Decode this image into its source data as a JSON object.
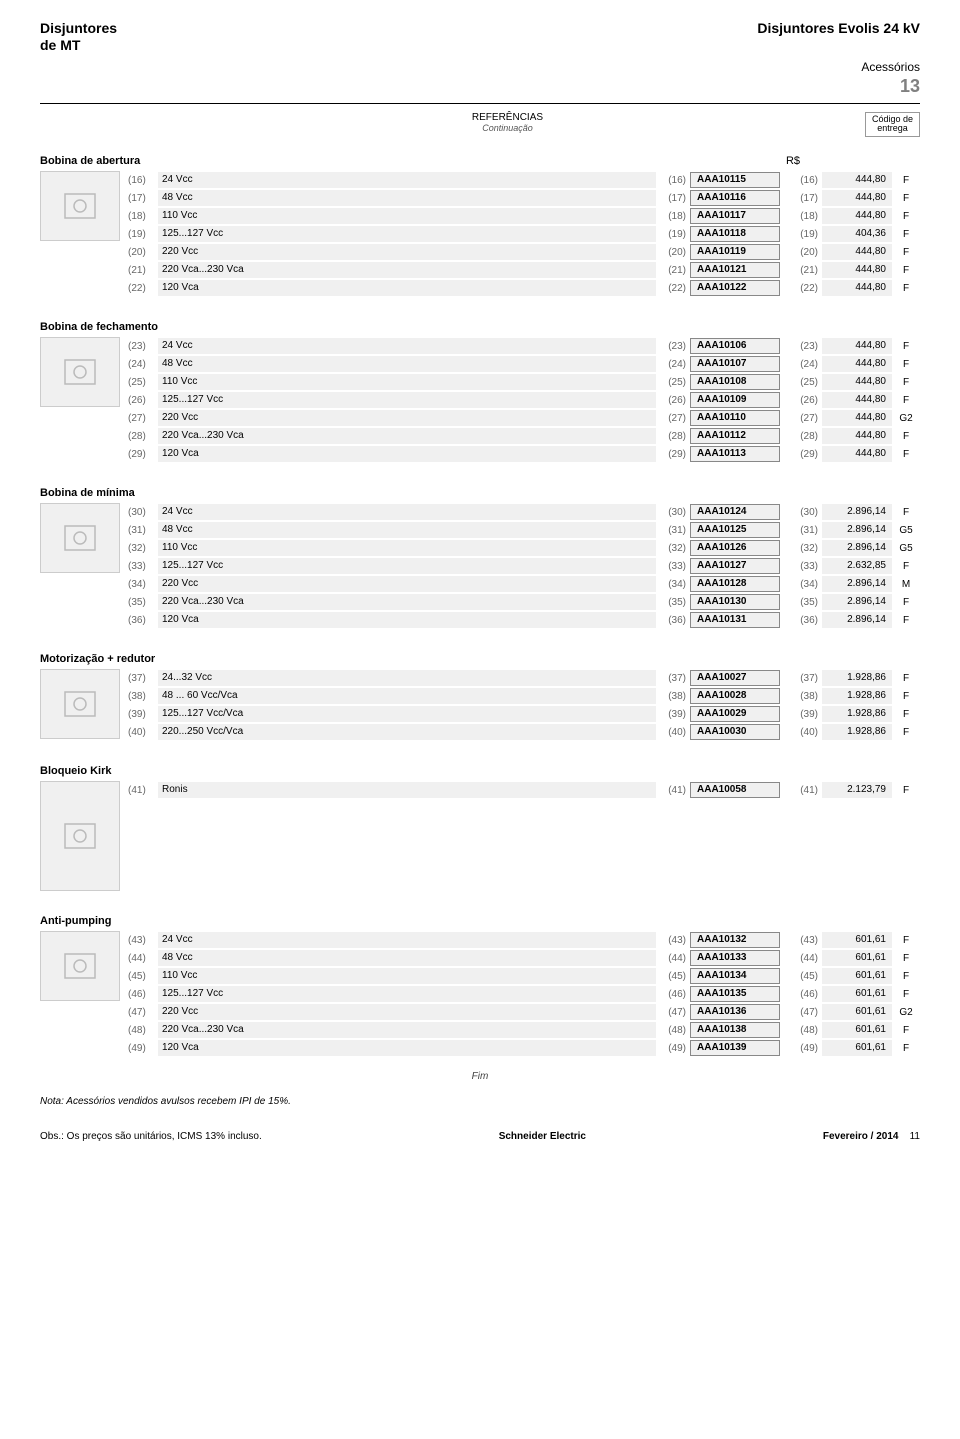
{
  "header": {
    "left_line1": "Disjuntores",
    "left_line2": "de MT",
    "right": "Disjuntores Evolis 24 kV",
    "subtitle": "Acessórios",
    "page_num": "13"
  },
  "ref_block": {
    "label": "REFERÊNCIAS",
    "sub": "Continuação",
    "code_l1": "Código de",
    "code_l2": "entrega"
  },
  "rs_label": "R$",
  "sections": [
    {
      "title": "Bobina de abertura",
      "has_thumb": true,
      "rows": [
        {
          "i": "(16)",
          "label": "24 Vcc",
          "code": "AAA10115",
          "price": "444,80",
          "dc": "F"
        },
        {
          "i": "(17)",
          "label": "48 Vcc",
          "code": "AAA10116",
          "price": "444,80",
          "dc": "F"
        },
        {
          "i": "(18)",
          "label": "110 Vcc",
          "code": "AAA10117",
          "price": "444,80",
          "dc": "F"
        },
        {
          "i": "(19)",
          "label": "125...127 Vcc",
          "code": "AAA10118",
          "price": "404,36",
          "dc": "F"
        },
        {
          "i": "(20)",
          "label": "220 Vcc",
          "code": "AAA10119",
          "price": "444,80",
          "dc": "F"
        },
        {
          "i": "(21)",
          "label": "220 Vca...230 Vca",
          "code": "AAA10121",
          "price": "444,80",
          "dc": "F"
        },
        {
          "i": "(22)",
          "label": "120 Vca",
          "code": "AAA10122",
          "price": "444,80",
          "dc": "F"
        }
      ]
    },
    {
      "title": "Bobina de fechamento",
      "has_thumb": true,
      "rows": [
        {
          "i": "(23)",
          "label": "24 Vcc",
          "code": "AAA10106",
          "price": "444,80",
          "dc": "F"
        },
        {
          "i": "(24)",
          "label": "48 Vcc",
          "code": "AAA10107",
          "price": "444,80",
          "dc": "F"
        },
        {
          "i": "(25)",
          "label": "110 Vcc",
          "code": "AAA10108",
          "price": "444,80",
          "dc": "F"
        },
        {
          "i": "(26)",
          "label": "125...127 Vcc",
          "code": "AAA10109",
          "price": "444,80",
          "dc": "F"
        },
        {
          "i": "(27)",
          "label": "220 Vcc",
          "code": "AAA10110",
          "price": "444,80",
          "dc": "G2"
        },
        {
          "i": "(28)",
          "label": "220 Vca...230 Vca",
          "code": "AAA10112",
          "price": "444,80",
          "dc": "F"
        },
        {
          "i": "(29)",
          "label": "120 Vca",
          "code": "AAA10113",
          "price": "444,80",
          "dc": "F"
        }
      ]
    },
    {
      "title": "Bobina de mínima",
      "has_thumb": true,
      "rows": [
        {
          "i": "(30)",
          "label": "24 Vcc",
          "code": "AAA10124",
          "price": "2.896,14",
          "dc": "F"
        },
        {
          "i": "(31)",
          "label": "48 Vcc",
          "code": "AAA10125",
          "price": "2.896,14",
          "dc": "G5"
        },
        {
          "i": "(32)",
          "label": "110 Vcc",
          "code": "AAA10126",
          "price": "2.896,14",
          "dc": "G5"
        },
        {
          "i": "(33)",
          "label": "125...127 Vcc",
          "code": "AAA10127",
          "price": "2.632,85",
          "dc": "F"
        },
        {
          "i": "(34)",
          "label": "220 Vcc",
          "code": "AAA10128",
          "price": "2.896,14",
          "dc": "M"
        },
        {
          "i": "(35)",
          "label": "220 Vca...230 Vca",
          "code": "AAA10130",
          "price": "2.896,14",
          "dc": "F"
        },
        {
          "i": "(36)",
          "label": "120 Vca",
          "code": "AAA10131",
          "price": "2.896,14",
          "dc": "F"
        }
      ]
    },
    {
      "title": "Motorização + redutor",
      "has_thumb": true,
      "rows": [
        {
          "i": "(37)",
          "label": "24...32 Vcc",
          "code": "AAA10027",
          "price": "1.928,86",
          "dc": "F"
        },
        {
          "i": "(38)",
          "label": "48 ... 60 Vcc/Vca",
          "code": "AAA10028",
          "price": "1.928,86",
          "dc": "F"
        },
        {
          "i": "(39)",
          "label": "125...127 Vcc/Vca",
          "code": "AAA10029",
          "price": "1.928,86",
          "dc": "F"
        },
        {
          "i": "(40)",
          "label": "220...250 Vcc/Vca",
          "code": "AAA10030",
          "price": "1.928,86",
          "dc": "F"
        }
      ]
    },
    {
      "title": "Bloqueio Kirk",
      "has_thumb": true,
      "thumb_tall": true,
      "rows": [
        {
          "i": "(41)",
          "label": "Ronis",
          "code": "AAA10058",
          "price": "2.123,79",
          "dc": "F"
        }
      ]
    },
    {
      "title": "Anti-pumping",
      "has_thumb": true,
      "rows": [
        {
          "i": "(43)",
          "label": "24 Vcc",
          "code": "AAA10132",
          "price": "601,61",
          "dc": "F"
        },
        {
          "i": "(44)",
          "label": "48 Vcc",
          "code": "AAA10133",
          "price": "601,61",
          "dc": "F"
        },
        {
          "i": "(45)",
          "label": "110 Vcc",
          "code": "AAA10134",
          "price": "601,61",
          "dc": "F"
        },
        {
          "i": "(46)",
          "label": "125...127 Vcc",
          "code": "AAA10135",
          "price": "601,61",
          "dc": "F"
        },
        {
          "i": "(47)",
          "label": "220 Vcc",
          "code": "AAA10136",
          "price": "601,61",
          "dc": "G2"
        },
        {
          "i": "(48)",
          "label": "220 Vca...230 Vca",
          "code": "AAA10138",
          "price": "601,61",
          "dc": "F"
        },
        {
          "i": "(49)",
          "label": "120 Vca",
          "code": "AAA10139",
          "price": "601,61",
          "dc": "F"
        }
      ]
    }
  ],
  "fim": "Fim",
  "note": "Nota: Acessórios vendidos avulsos recebem IPI de 15%.",
  "footer": {
    "left": "Obs.: Os preços são unitários, ICMS 13% incluso.",
    "mid": "Schneider Electric",
    "right_label": "Fevereiro / 2014",
    "right_page": "11"
  },
  "styling": {
    "row_bg": "#f0f0f0",
    "code_border": "#888888",
    "font_main": 10,
    "font_title": 14,
    "gray": "#808080"
  }
}
